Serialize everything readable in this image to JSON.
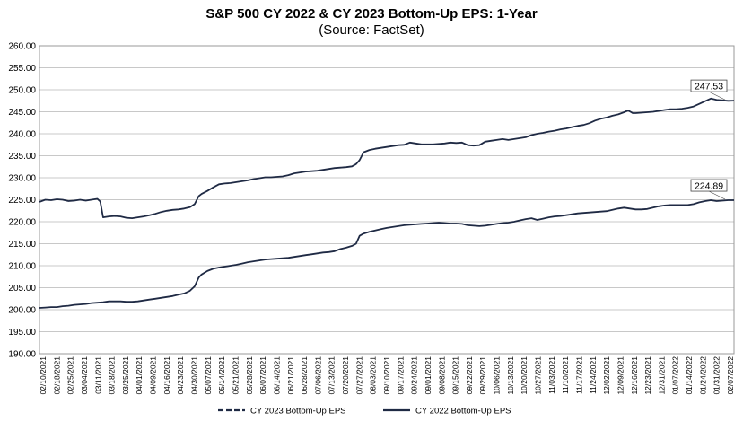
{
  "chart_data": {
    "type": "line",
    "title": "S&P 500 CY 2022 & CY 2023 Bottom-Up EPS: 1-Year",
    "subtitle": "(Source: FactSet)",
    "xlabel": "",
    "ylabel": "",
    "ylim": [
      190,
      260
    ],
    "y_ticks": [
      "260.00",
      "255.00",
      "250.00",
      "245.00",
      "240.00",
      "235.00",
      "230.00",
      "225.00",
      "220.00",
      "215.00",
      "210.00",
      "205.00",
      "200.00",
      "195.00",
      "190.00"
    ],
    "x_ticks": [
      "02/10/2021",
      "02/18/2021",
      "02/25/2021",
      "03/04/2021",
      "03/11/2021",
      "03/18/2021",
      "03/25/2021",
      "04/01/2021",
      "04/09/2021",
      "04/16/2021",
      "04/23/2021",
      "04/30/2021",
      "05/07/2021",
      "05/14/2021",
      "05/21/2021",
      "05/28/2021",
      "06/07/2021",
      "06/14/2021",
      "06/21/2021",
      "06/28/2021",
      "07/06/2021",
      "07/13/2021",
      "07/20/2021",
      "07/27/2021",
      "08/03/2021",
      "09/10/2021",
      "09/17/2021",
      "09/24/2021",
      "09/01/2021",
      "09/08/2021",
      "09/15/2021",
      "09/22/2021",
      "09/29/2021",
      "10/06/2021",
      "10/13/2021",
      "10/20/2021",
      "10/27/2021",
      "11/03/2021",
      "11/10/2021",
      "11/17/2021",
      "11/24/2021",
      "12/02/2021",
      "12/09/2021",
      "12/16/2021",
      "12/23/2021",
      "12/31/2021",
      "01/07/2022",
      "01/14/2022",
      "01/24/2022",
      "01/31/2022",
      "02/07/2022"
    ],
    "grid": "horizontal",
    "legend_position": "bottom",
    "series": [
      {
        "name": "CY 2023 Bottom-Up EPS",
        "style": "dashed",
        "color": "#1f2a44",
        "end_label": "247.53",
        "points": [
          [
            0,
            224.5
          ],
          [
            1,
            225.0
          ],
          [
            2,
            224.9
          ],
          [
            3,
            225.1
          ],
          [
            4,
            225.0
          ],
          [
            5,
            224.7
          ],
          [
            6,
            224.8
          ],
          [
            7,
            225.0
          ],
          [
            8,
            224.8
          ],
          [
            9,
            225.0
          ],
          [
            10,
            225.2
          ],
          [
            10.5,
            224.6
          ],
          [
            11,
            221.0
          ],
          [
            12,
            221.2
          ],
          [
            13,
            221.3
          ],
          [
            14,
            221.2
          ],
          [
            15,
            220.9
          ],
          [
            16,
            220.8
          ],
          [
            17,
            221.0
          ],
          [
            18,
            221.2
          ],
          [
            19,
            221.5
          ],
          [
            20,
            221.8
          ],
          [
            21,
            222.2
          ],
          [
            22,
            222.5
          ],
          [
            23,
            222.7
          ],
          [
            24,
            222.8
          ],
          [
            25,
            223.0
          ],
          [
            26,
            223.3
          ],
          [
            26.8,
            224.0
          ],
          [
            27.5,
            225.8
          ],
          [
            28,
            226.3
          ],
          [
            29,
            227.0
          ],
          [
            30,
            227.8
          ],
          [
            31,
            228.5
          ],
          [
            32,
            228.7
          ],
          [
            33,
            228.8
          ],
          [
            34,
            229.0
          ],
          [
            35,
            229.2
          ],
          [
            36,
            229.4
          ],
          [
            37,
            229.7
          ],
          [
            38,
            229.9
          ],
          [
            39,
            230.1
          ],
          [
            40,
            230.1
          ],
          [
            41,
            230.2
          ],
          [
            42,
            230.3
          ],
          [
            43,
            230.6
          ],
          [
            44,
            231.0
          ],
          [
            45,
            231.2
          ],
          [
            46,
            231.4
          ],
          [
            47,
            231.5
          ],
          [
            48,
            231.6
          ],
          [
            49,
            231.8
          ],
          [
            50,
            232.0
          ],
          [
            51,
            232.2
          ],
          [
            52,
            232.3
          ],
          [
            53,
            232.4
          ],
          [
            54,
            232.6
          ],
          [
            54.7,
            233.1
          ],
          [
            55.3,
            234.0
          ],
          [
            56,
            235.8
          ],
          [
            57,
            236.3
          ],
          [
            58,
            236.6
          ],
          [
            59,
            236.8
          ],
          [
            60,
            237.0
          ],
          [
            61,
            237.2
          ],
          [
            62,
            237.4
          ],
          [
            63,
            237.5
          ],
          [
            64,
            238.0
          ],
          [
            65,
            237.8
          ],
          [
            66,
            237.6
          ],
          [
            67,
            237.6
          ],
          [
            68,
            237.6
          ],
          [
            69,
            237.7
          ],
          [
            70,
            237.8
          ],
          [
            71,
            238.0
          ],
          [
            72,
            237.9
          ],
          [
            73,
            238.0
          ],
          [
            74,
            237.4
          ],
          [
            75,
            237.3
          ],
          [
            76,
            237.4
          ],
          [
            77,
            238.2
          ],
          [
            78,
            238.4
          ],
          [
            79,
            238.6
          ],
          [
            80,
            238.8
          ],
          [
            81,
            238.6
          ],
          [
            82,
            238.8
          ],
          [
            83,
            239.0
          ],
          [
            84,
            239.2
          ],
          [
            85,
            239.7
          ],
          [
            86,
            240.0
          ],
          [
            87,
            240.2
          ],
          [
            88,
            240.5
          ],
          [
            89,
            240.7
          ],
          [
            90,
            241.0
          ],
          [
            91,
            241.2
          ],
          [
            92,
            241.5
          ],
          [
            93,
            241.8
          ],
          [
            94,
            242.0
          ],
          [
            95,
            242.4
          ],
          [
            96,
            243.0
          ],
          [
            97,
            243.4
          ],
          [
            98,
            243.7
          ],
          [
            99,
            244.1
          ],
          [
            100,
            244.4
          ],
          [
            101,
            244.9
          ],
          [
            101.7,
            245.3
          ],
          [
            102.5,
            244.7
          ],
          [
            103,
            244.7
          ],
          [
            104,
            244.8
          ],
          [
            105,
            244.9
          ],
          [
            106,
            245.0
          ],
          [
            107,
            245.2
          ],
          [
            108,
            245.4
          ],
          [
            109,
            245.6
          ],
          [
            110,
            245.6
          ],
          [
            111,
            245.7
          ],
          [
            112,
            245.9
          ],
          [
            113,
            246.2
          ],
          [
            114,
            246.8
          ],
          [
            115,
            247.4
          ],
          [
            116,
            248.0
          ],
          [
            117,
            247.7
          ],
          [
            118,
            247.6
          ],
          [
            119,
            247.5
          ],
          [
            120,
            247.53
          ]
        ]
      },
      {
        "name": "CY 2022 Bottom-Up EPS",
        "style": "solid",
        "color": "#1f2a44",
        "end_label": "224.89",
        "points": [
          [
            0,
            200.4
          ],
          [
            1,
            200.5
          ],
          [
            2,
            200.6
          ],
          [
            3,
            200.6
          ],
          [
            4,
            200.8
          ],
          [
            5,
            200.9
          ],
          [
            6,
            201.1
          ],
          [
            7,
            201.2
          ],
          [
            8,
            201.3
          ],
          [
            9,
            201.5
          ],
          [
            10,
            201.6
          ],
          [
            11,
            201.7
          ],
          [
            12,
            201.9
          ],
          [
            13,
            201.9
          ],
          [
            14,
            201.9
          ],
          [
            15,
            201.8
          ],
          [
            16,
            201.8
          ],
          [
            17,
            201.9
          ],
          [
            18,
            202.1
          ],
          [
            19,
            202.3
          ],
          [
            20,
            202.5
          ],
          [
            21,
            202.7
          ],
          [
            22,
            202.9
          ],
          [
            23,
            203.1
          ],
          [
            24,
            203.4
          ],
          [
            25,
            203.7
          ],
          [
            26,
            204.3
          ],
          [
            26.8,
            205.3
          ],
          [
            27.5,
            207.3
          ],
          [
            28,
            208.0
          ],
          [
            29,
            208.8
          ],
          [
            30,
            209.3
          ],
          [
            31,
            209.6
          ],
          [
            32,
            209.8
          ],
          [
            33,
            210.0
          ],
          [
            34,
            210.2
          ],
          [
            35,
            210.5
          ],
          [
            36,
            210.8
          ],
          [
            37,
            211.0
          ],
          [
            38,
            211.2
          ],
          [
            39,
            211.4
          ],
          [
            40,
            211.5
          ],
          [
            41,
            211.6
          ],
          [
            42,
            211.7
          ],
          [
            43,
            211.8
          ],
          [
            44,
            212.0
          ],
          [
            45,
            212.2
          ],
          [
            46,
            212.4
          ],
          [
            47,
            212.6
          ],
          [
            48,
            212.8
          ],
          [
            49,
            213.0
          ],
          [
            50,
            213.1
          ],
          [
            51,
            213.3
          ],
          [
            52,
            213.8
          ],
          [
            53,
            214.1
          ],
          [
            54,
            214.5
          ],
          [
            54.7,
            215.0
          ],
          [
            55.3,
            216.8
          ],
          [
            56,
            217.3
          ],
          [
            57,
            217.7
          ],
          [
            58,
            218.0
          ],
          [
            59,
            218.3
          ],
          [
            60,
            218.6
          ],
          [
            61,
            218.8
          ],
          [
            62,
            219.0
          ],
          [
            63,
            219.2
          ],
          [
            64,
            219.3
          ],
          [
            65,
            219.4
          ],
          [
            66,
            219.5
          ],
          [
            67,
            219.6
          ],
          [
            68,
            219.7
          ],
          [
            69,
            219.8
          ],
          [
            70,
            219.7
          ],
          [
            71,
            219.6
          ],
          [
            72,
            219.6
          ],
          [
            73,
            219.5
          ],
          [
            74,
            219.2
          ],
          [
            75,
            219.1
          ],
          [
            76,
            219.0
          ],
          [
            77,
            219.1
          ],
          [
            78,
            219.3
          ],
          [
            79,
            219.5
          ],
          [
            80,
            219.7
          ],
          [
            81,
            219.8
          ],
          [
            82,
            220.0
          ],
          [
            83,
            220.3
          ],
          [
            84,
            220.6
          ],
          [
            85,
            220.8
          ],
          [
            86,
            220.4
          ],
          [
            87,
            220.7
          ],
          [
            88,
            221.0
          ],
          [
            89,
            221.2
          ],
          [
            90,
            221.3
          ],
          [
            91,
            221.5
          ],
          [
            92,
            221.7
          ],
          [
            93,
            221.9
          ],
          [
            94,
            222.0
          ],
          [
            95,
            222.1
          ],
          [
            96,
            222.2
          ],
          [
            97,
            222.3
          ],
          [
            98,
            222.4
          ],
          [
            99,
            222.7
          ],
          [
            100,
            223.0
          ],
          [
            101,
            223.2
          ],
          [
            102,
            223.0
          ],
          [
            103,
            222.8
          ],
          [
            104,
            222.8
          ],
          [
            105,
            222.9
          ],
          [
            106,
            223.2
          ],
          [
            107,
            223.5
          ],
          [
            108,
            223.7
          ],
          [
            109,
            223.8
          ],
          [
            110,
            223.8
          ],
          [
            111,
            223.8
          ],
          [
            112,
            223.8
          ],
          [
            113,
            224.0
          ],
          [
            114,
            224.4
          ],
          [
            115,
            224.7
          ],
          [
            116,
            224.9
          ],
          [
            117,
            224.7
          ],
          [
            118,
            224.8
          ],
          [
            119,
            224.9
          ],
          [
            120,
            224.89
          ]
        ]
      }
    ]
  }
}
